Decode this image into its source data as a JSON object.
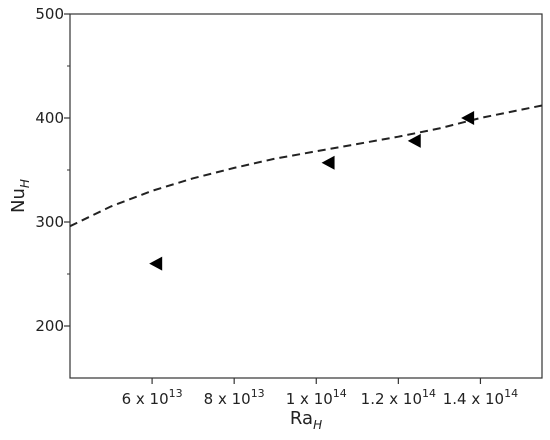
{
  "chart_data": {
    "type": "scatter",
    "title": "",
    "xlabel": {
      "main": "Ra",
      "sub": "H"
    },
    "ylabel": {
      "main": "Nu",
      "sub": "H"
    },
    "xlim": [
      40000000000000.0,
      155000000000000.0
    ],
    "ylim": [
      150,
      500
    ],
    "x_ticks": [
      {
        "value": 60000000000000.0,
        "mantissa": "6 x 10",
        "exp": "13"
      },
      {
        "value": 80000000000000.0,
        "mantissa": "8 x 10",
        "exp": "13"
      },
      {
        "value": 100000000000000.0,
        "mantissa": "1 x 10",
        "exp": "14"
      },
      {
        "value": 120000000000000.0,
        "mantissa": "1.2 x 10",
        "exp": "14"
      },
      {
        "value": 140000000000000.0,
        "mantissa": "1.4 x 10",
        "exp": "14"
      }
    ],
    "y_ticks": [
      {
        "value": 200,
        "label": "200"
      },
      {
        "value": 300,
        "label": "300"
      },
      {
        "value": 400,
        "label": "400"
      },
      {
        "value": 500,
        "label": "500"
      }
    ],
    "y_minor_ticks": [
      250,
      350,
      450
    ],
    "series": [
      {
        "kind": "points",
        "marker": "left-triangle",
        "color": "#000000",
        "x": [
          61000000000000.0,
          103000000000000.0,
          124000000000000.0,
          137000000000000.0
        ],
        "y": [
          260,
          357,
          378,
          400
        ]
      },
      {
        "kind": "curve",
        "style": "dashed",
        "color": "#222222",
        "x": [
          40000000000000.0,
          50000000000000.0,
          60000000000000.0,
          70000000000000.0,
          80000000000000.0,
          90000000000000.0,
          100000000000000.0,
          110000000000000.0,
          120000000000000.0,
          130000000000000.0,
          140000000000000.0,
          155000000000000.0
        ],
        "y": [
          296,
          315,
          330,
          342,
          352,
          361,
          368,
          375,
          382,
          390,
          400,
          412
        ]
      }
    ],
    "grid": false,
    "legend": "none"
  }
}
